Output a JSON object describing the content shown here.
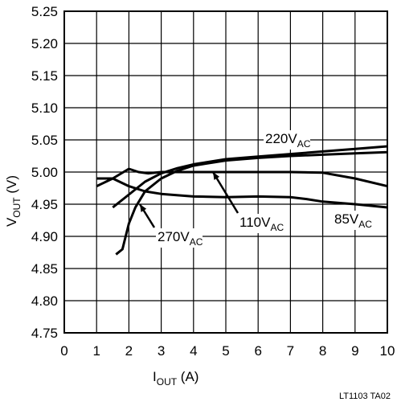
{
  "chart_data": {
    "type": "line",
    "x_label": [
      "I",
      "OUT",
      " (A)"
    ],
    "y_label": [
      "V",
      "OUT",
      " (V)"
    ],
    "footnote": "LT1103 TA02",
    "xlim": [
      0,
      10
    ],
    "xticks": [
      0,
      1,
      2,
      3,
      4,
      5,
      6,
      7,
      8,
      9,
      10
    ],
    "ylim": [
      4.75,
      5.25
    ],
    "yticks": [
      4.75,
      {
        "value": 4.8,
        "label": "4.80"
      },
      4.85,
      {
        "value": 4.9,
        "label": "4.90"
      },
      4.95,
      {
        "value": 5.0,
        "label": "5.00"
      },
      5.05,
      {
        "value": 5.1,
        "label": "5.10"
      },
      5.15,
      {
        "value": 5.2,
        "label": "5.20"
      },
      5.25
    ],
    "grid": true,
    "series": [
      {
        "name": "220V",
        "name_subscript": "AC",
        "color": "#000000",
        "x": [
          1.5,
          2,
          2.5,
          3,
          3.5,
          4,
          5,
          6,
          7,
          8,
          9,
          10
        ],
        "values": [
          4.945,
          4.965,
          4.985,
          4.998,
          5.006,
          5.012,
          5.02,
          5.024,
          5.028,
          5.032,
          5.036,
          5.04
        ]
      },
      {
        "name": "270V",
        "name_subscript": "AC",
        "color": "#000000",
        "x": [
          1.6,
          1.8,
          1.9,
          2,
          2.2,
          2.5,
          3,
          3.5,
          4,
          5,
          6,
          7,
          8,
          9,
          10
        ],
        "values": [
          4.872,
          4.88,
          4.9,
          4.92,
          4.945,
          4.97,
          4.99,
          5.002,
          5.01,
          5.018,
          5.022,
          5.025,
          5.027,
          5.029,
          5.031
        ]
      },
      {
        "name": "110V",
        "name_subscript": "AC",
        "color": "#000000",
        "x": [
          1,
          1.5,
          2,
          2.3,
          2.6,
          3,
          4,
          5,
          6,
          7,
          8,
          9,
          10
        ],
        "values": [
          4.978,
          4.99,
          5.005,
          5.0,
          4.998,
          5.0,
          5.0,
          5.0,
          5.0,
          5.0,
          4.999,
          4.99,
          4.978
        ]
      },
      {
        "name": "85V",
        "name_subscript": "AC",
        "color": "#000000",
        "x": [
          1,
          1.5,
          2,
          2.5,
          3,
          4,
          5,
          6,
          7,
          7.5,
          8,
          9,
          10
        ],
        "values": [
          4.99,
          4.99,
          4.978,
          4.97,
          4.966,
          4.962,
          4.961,
          4.962,
          4.961,
          4.958,
          4.954,
          4.95,
          4.945
        ]
      }
    ]
  }
}
